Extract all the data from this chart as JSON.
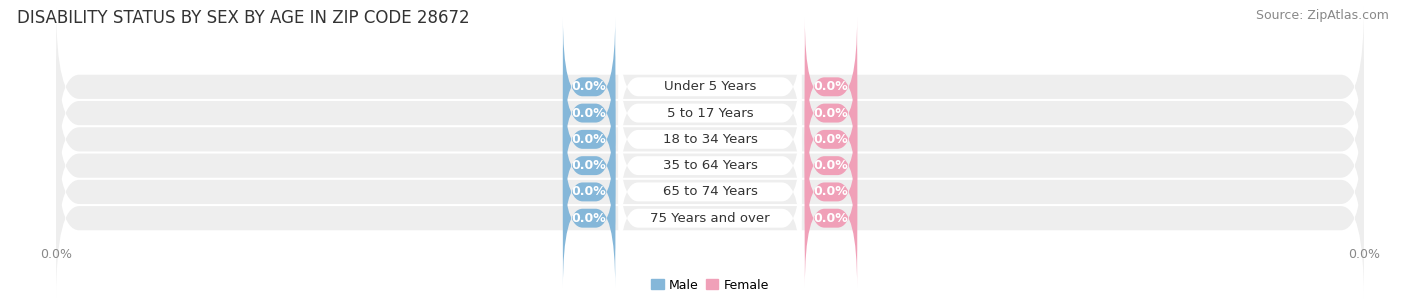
{
  "title": "DISABILITY STATUS BY SEX BY AGE IN ZIP CODE 28672",
  "source": "Source: ZipAtlas.com",
  "categories": [
    "Under 5 Years",
    "5 to 17 Years",
    "18 to 34 Years",
    "35 to 64 Years",
    "65 to 74 Years",
    "75 Years and over"
  ],
  "male_values": [
    0.0,
    0.0,
    0.0,
    0.0,
    0.0,
    0.0
  ],
  "female_values": [
    0.0,
    0.0,
    0.0,
    0.0,
    0.0,
    0.0
  ],
  "male_color": "#85b7d9",
  "female_color": "#f0a0b8",
  "male_label": "Male",
  "female_label": "Female",
  "band_color": "#eeeeee",
  "band_color_alt": "#e8e8e8",
  "title_fontsize": 12,
  "source_fontsize": 9,
  "label_fontsize": 9,
  "tick_fontsize": 9,
  "title_color": "#333333",
  "axis_color": "#888888",
  "cat_label_fontsize": 9.5
}
